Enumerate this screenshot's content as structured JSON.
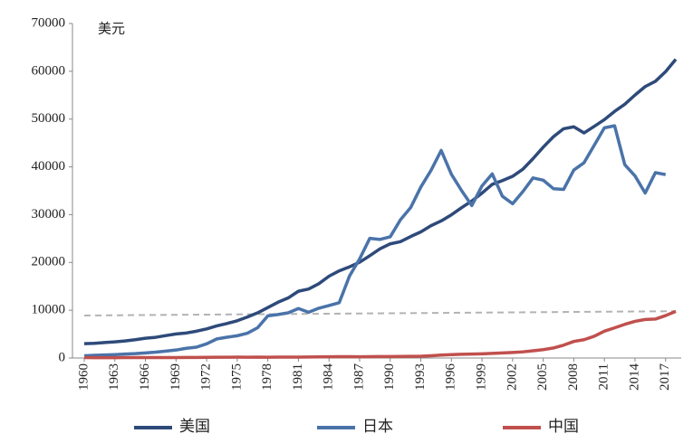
{
  "chart_data": {
    "type": "line",
    "y_unit": "美元",
    "x": [
      1960,
      1961,
      1962,
      1963,
      1964,
      1965,
      1966,
      1967,
      1968,
      1969,
      1970,
      1971,
      1972,
      1973,
      1974,
      1975,
      1976,
      1977,
      1978,
      1979,
      1980,
      1981,
      1982,
      1983,
      1984,
      1985,
      1986,
      1987,
      1988,
      1989,
      1990,
      1991,
      1992,
      1993,
      1994,
      1995,
      1996,
      1997,
      1998,
      1999,
      2000,
      2001,
      2002,
      2003,
      2004,
      2005,
      2006,
      2007,
      2008,
      2009,
      2010,
      2011,
      2012,
      2013,
      2014,
      2015,
      2016,
      2017,
      2018
    ],
    "series": [
      {
        "name": "美国",
        "color": "#2e4a7a",
        "values": [
          3007,
          3067,
          3244,
          3375,
          3574,
          3828,
          4146,
          4336,
          4696,
          5032,
          5234,
          5609,
          6094,
          6726,
          7226,
          7801,
          8592,
          9453,
          10565,
          11674,
          12575,
          13976,
          14434,
          15544,
          17121,
          18237,
          19071,
          20039,
          21417,
          22857,
          23889,
          24342,
          25419,
          26387,
          27695,
          28691,
          29968,
          31459,
          32854,
          34515,
          36335,
          37133,
          38023,
          39497,
          41712,
          44115,
          46299,
          47976,
          48383,
          47100,
          48467,
          49887,
          51603,
          53107,
          55033,
          56803,
          57904,
          59928,
          62500
        ]
      },
      {
        "name": "日本",
        "color": "#4a73a9",
        "values": [
          479,
          564,
          634,
          717,
          835,
          919,
          1058,
          1228,
          1450,
          1669,
          2037,
          2272,
          2967,
          3997,
          4354,
          4659,
          5198,
          6335,
          8821,
          9105,
          9463,
          10361,
          9578,
          10425,
          10984,
          11585,
          17112,
          20745,
          25051,
          24813,
          25359,
          28925,
          31465,
          35766,
          39269,
          43440,
          38437,
          35022,
          31903,
          36027,
          38532,
          33846,
          32289,
          34808,
          37688,
          37218,
          35434,
          35275,
          39339,
          40855,
          44508,
          48168,
          48603,
          40454,
          38109,
          34524,
          38794,
          38387,
          null
        ]
      },
      {
        "name": "中国",
        "color": "#c0504d",
        "values": [
          90,
          76,
          70,
          74,
          85,
          98,
          104,
          96,
          91,
          100,
          113,
          119,
          132,
          157,
          160,
          178,
          165,
          185,
          156,
          184,
          195,
          197,
          203,
          225,
          251,
          294,
          282,
          252,
          284,
          311,
          318,
          333,
          366,
          377,
          473,
          610,
          709,
          782,
          829,
          873,
          959,
          1053,
          1149,
          1289,
          1509,
          1753,
          2099,
          2694,
          3468,
          3832,
          4550,
          5618,
          6317,
          7051,
          7679,
          8067,
          8148,
          8879,
          9771
        ]
      }
    ],
    "trend_line": {
      "x": [
        1960,
        2018
      ],
      "values": [
        8900,
        9800
      ],
      "color": "#b3b3b3",
      "dashed": true
    },
    "xlim": [
      1960,
      2018
    ],
    "xticks": [
      1960,
      1963,
      1966,
      1969,
      1972,
      1975,
      1978,
      1981,
      1984,
      1987,
      1990,
      1993,
      1996,
      1999,
      2002,
      2005,
      2008,
      2011,
      2014,
      2017
    ],
    "ylim": [
      0,
      70000
    ],
    "yticks": [
      0,
      10000,
      20000,
      30000,
      40000,
      50000,
      60000,
      70000
    ],
    "grid": false,
    "legend": "bottom"
  }
}
